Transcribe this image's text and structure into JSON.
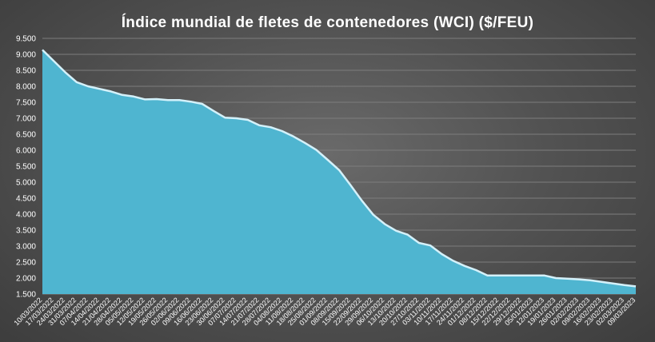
{
  "chart_data": {
    "type": "area",
    "title": "Índice mundial  de fletes de contenedores (WCI) ($/FEU)",
    "xlabel": "",
    "ylabel": "",
    "ylim": [
      1500,
      9500
    ],
    "yticks": [
      "1.500",
      "2.000",
      "2.500",
      "3.000",
      "3.500",
      "4.000",
      "4.500",
      "5.000",
      "5.500",
      "6.000",
      "6.500",
      "7.000",
      "7.500",
      "8.000",
      "8.500",
      "9.000",
      "9.500"
    ],
    "grid": true,
    "fill_color": "#4fb5d0",
    "edge_color": "#d4f1fa",
    "x": [
      "10/03/2022",
      "17/03/2022",
      "24/03/2022",
      "31/03/2022",
      "07/04/2022",
      "14/04/2022",
      "21/04/2022",
      "28/04/2022",
      "05/05/2022",
      "12/05/2022",
      "19/05/2022",
      "26/05/2022",
      "02/06/2022",
      "09/06/2022",
      "16/06/2022",
      "23/06/2022",
      "30/06/2022",
      "07/07/2022",
      "14/07/2022",
      "21/07/2022",
      "28/07/2022",
      "04/08/2022",
      "11/08/2022",
      "18/08/2022",
      "25/08/2022",
      "01/09/2022",
      "08/09/2022",
      "15/09/2022",
      "22/09/2022",
      "29/09/2022",
      "06/10/2022",
      "13/10/2022",
      "20/10/2022",
      "27/10/2022",
      "03/11/2022",
      "10/11/2022",
      "17/11/2022",
      "24/11/2022",
      "01/12/2022",
      "08/12/2022",
      "15/12/2022",
      "22/12/2022",
      "29/12/2022",
      "05/01/2023",
      "12/01/2023",
      "19/01/2023",
      "26/01/2023",
      "02/02/2023",
      "09/02/2023",
      "16/02/2023",
      "23/02/2023",
      "02/03/2023",
      "09/03/2023"
    ],
    "values": [
      9140,
      8790,
      8440,
      8130,
      8000,
      7920,
      7840,
      7730,
      7680,
      7590,
      7600,
      7570,
      7570,
      7520,
      7450,
      7230,
      7020,
      7000,
      6950,
      6780,
      6720,
      6600,
      6430,
      6230,
      6010,
      5700,
      5380,
      4910,
      4420,
      3980,
      3690,
      3480,
      3360,
      3100,
      3020,
      2750,
      2540,
      2380,
      2250,
      2080,
      2080,
      2080,
      2080,
      2080,
      2080,
      2000,
      1980,
      1960,
      1930,
      1880,
      1830,
      1780,
      1740
    ]
  }
}
